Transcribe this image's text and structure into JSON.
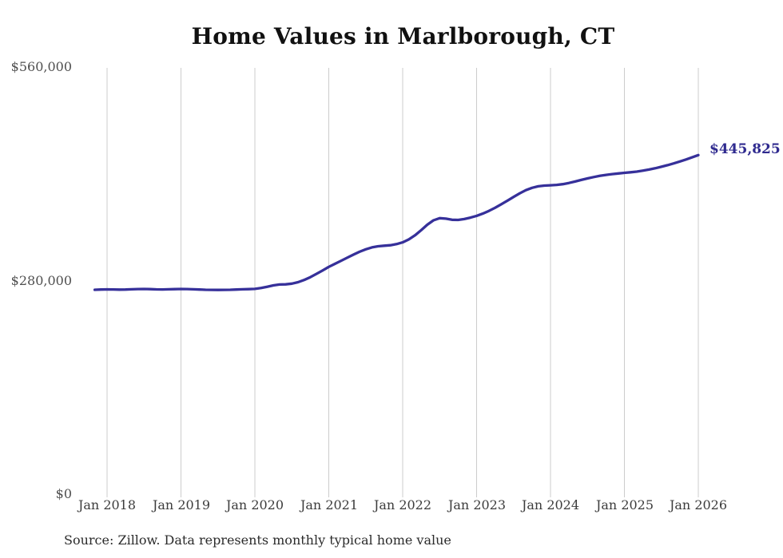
{
  "page": {
    "background": "#ffffff"
  },
  "chart_data": {
    "type": "line",
    "title": "Home Values in Marlborough, CT",
    "source_note": "Source: Zillow. Data represents monthly typical home value",
    "end_label": "$445,825",
    "final_value": 445825,
    "series_name": "Typical home value",
    "x_start": "2017-11",
    "x_interval": "monthly",
    "x_ticks": [
      "Jan 2018",
      "Jan 2019",
      "Jan 2020",
      "Jan 2021",
      "Jan 2022",
      "Jan 2023",
      "Jan 2024",
      "Jan 2025",
      "Jan 2026"
    ],
    "y_ticks": [
      {
        "label": "$560,000",
        "value": 560000
      },
      {
        "label": "$280,000",
        "value": 280000
      },
      {
        "label": "$0",
        "value": 0
      }
    ],
    "ylim": [
      0,
      560000
    ],
    "grid": "vertical-only",
    "legend": "none",
    "colors": {
      "line": "#36309a",
      "end_label": "#2f2a8f",
      "grid": "#cccccc",
      "title": "#111111",
      "axis_text": "#444444",
      "source_text": "#2b2b2b"
    },
    "values": [
      269600,
      269900,
      270100,
      270000,
      269800,
      269900,
      270200,
      270500,
      270600,
      270400,
      270100,
      270000,
      270200,
      270400,
      270600,
      270500,
      270200,
      269900,
      269600,
      269400,
      269300,
      269400,
      269600,
      269900,
      270200,
      270400,
      270700,
      271800,
      273500,
      275300,
      276400,
      276700,
      277600,
      279500,
      282400,
      286100,
      290300,
      294800,
      299500,
      303500,
      307500,
      311500,
      315500,
      319300,
      322500,
      325000,
      326500,
      327200,
      327900,
      329300,
      331600,
      335500,
      340800,
      347500,
      354700,
      360400,
      363300,
      362600,
      361200,
      361000,
      362100,
      364000,
      366300,
      369200,
      372800,
      376900,
      381400,
      386200,
      391100,
      395800,
      399900,
      403000,
      405000,
      405900,
      406300,
      406800,
      407800,
      409300,
      411200,
      413300,
      415300,
      417100,
      418700,
      419900,
      420900,
      421800,
      422600,
      423300,
      424200,
      425400,
      426900,
      428600,
      430500,
      432600,
      434900,
      437400,
      440100,
      442900,
      445825
    ]
  }
}
